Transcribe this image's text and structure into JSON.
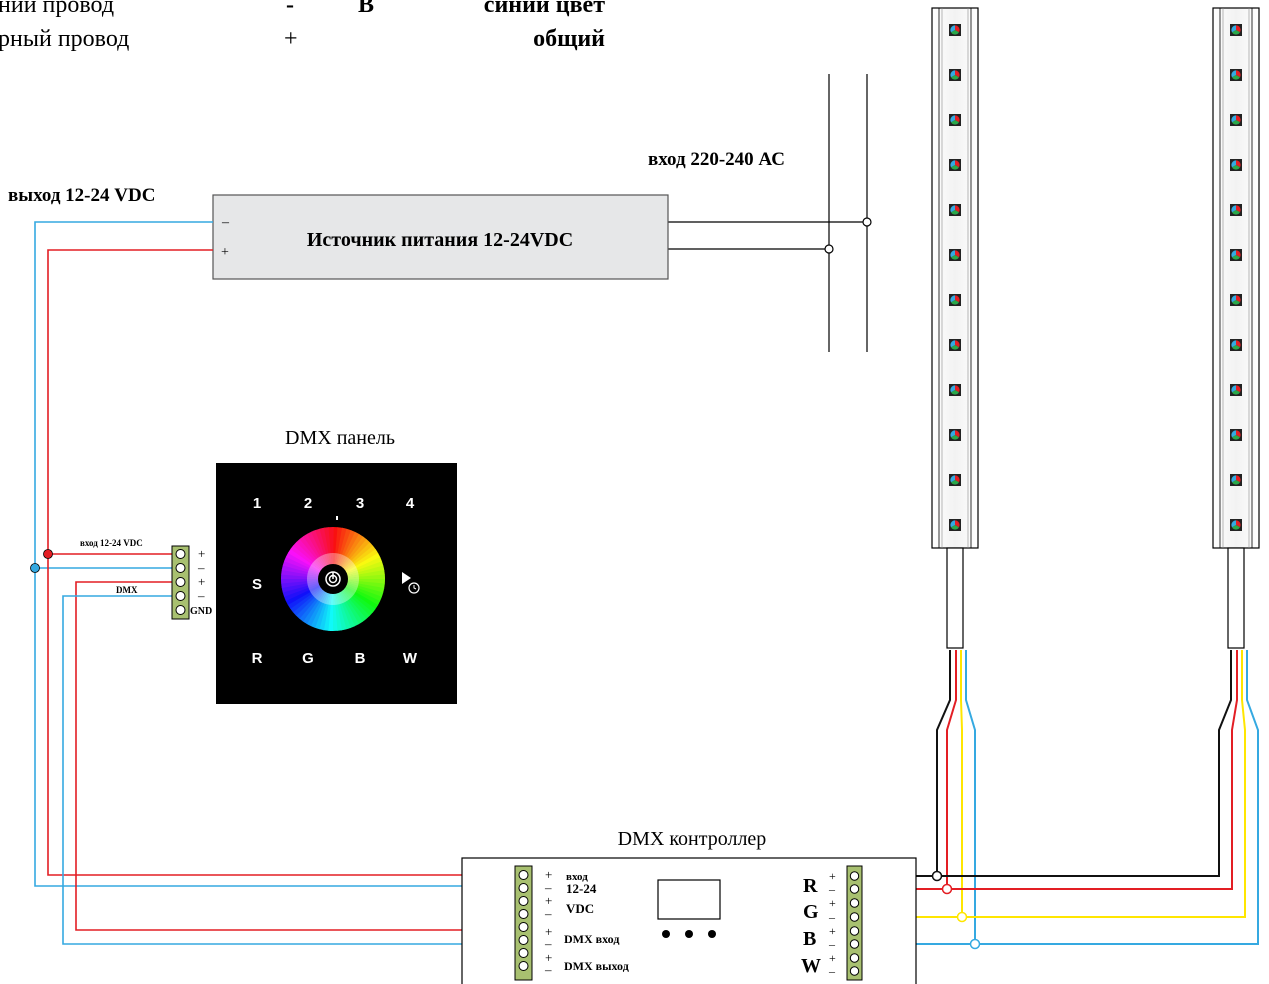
{
  "legend": {
    "row1": {
      "wire": "ний провод",
      "sign": "-",
      "letter": "B",
      "meaning": "синий цвет"
    },
    "row2": {
      "wire": "рный провод",
      "sign": "+",
      "letter": "",
      "meaning": "общий"
    }
  },
  "power_supply": {
    "title": "Источник питания 12-24VDC",
    "minus": "–",
    "plus": "+",
    "output_label": "выход 12-24 VDC",
    "input_label": "вход 220-240 АС"
  },
  "panel": {
    "title": "DMX панель",
    "buttons_top": [
      "1",
      "2",
      "3",
      "4"
    ],
    "buttons_bottom": [
      "R",
      "G",
      "B",
      "W"
    ],
    "left_button": "S",
    "terminal_labels": {
      "vin": "вход 12-24 VDC",
      "dmx": "DMX",
      "plus1": "+",
      "minus1": "–",
      "plus2": "+",
      "minus2": "–",
      "gnd": "GND"
    }
  },
  "controller": {
    "title": "DMX контроллер",
    "in_label_1": "вход",
    "in_label_2": "12-24",
    "in_label_3": "VDC",
    "dmx_in": "DMX вход",
    "dmx_out": "DMX выход",
    "signs": [
      "+",
      "–",
      "+",
      "–",
      "+",
      "–",
      "+",
      "–"
    ],
    "outputs": [
      {
        "label": "R",
        "plus": "+",
        "minus": "–"
      },
      {
        "label": "G",
        "plus": "+",
        "minus": "–"
      },
      {
        "label": "B",
        "plus": "+",
        "minus": "–"
      },
      {
        "label": "W",
        "plus": "+",
        "minus": "–"
      }
    ]
  },
  "colors": {
    "red": "#e31e24",
    "blue": "#35a9e1",
    "yellow": "#ffe600",
    "black": "#111111",
    "supply_fill": "#e6e7e8",
    "panel": "#000000"
  }
}
